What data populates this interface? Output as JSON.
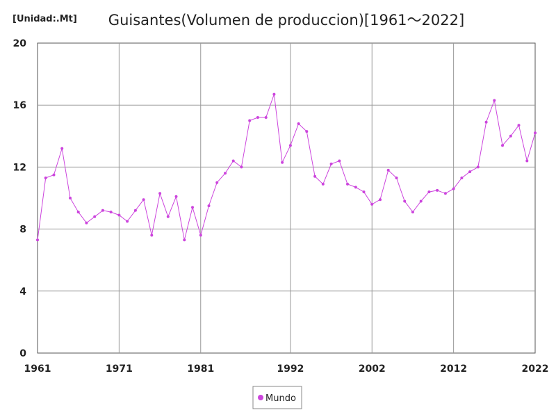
{
  "unit_label": "[Unidad:.Mt]",
  "chart_data": {
    "type": "line",
    "title": "Guisantes(Volumen de produccion)[1961～2022]",
    "xlabel": "",
    "ylabel": "",
    "x_ticks": [
      "1961",
      "1971",
      "1981",
      "1992",
      "2002",
      "2012",
      "2022"
    ],
    "y_ticks": [
      "0",
      "4",
      "8",
      "12",
      "16",
      "20"
    ],
    "ylim": [
      0,
      20
    ],
    "xlim": [
      1961,
      2022
    ],
    "grid": true,
    "legend_position": "bottom",
    "series_color": "#cc44dd",
    "series": [
      {
        "name": "Mundo",
        "x": [
          1961,
          1962,
          1963,
          1964,
          1965,
          1966,
          1967,
          1968,
          1969,
          1970,
          1971,
          1972,
          1973,
          1974,
          1975,
          1976,
          1977,
          1978,
          1979,
          1980,
          1981,
          1982,
          1983,
          1984,
          1985,
          1986,
          1987,
          1988,
          1989,
          1990,
          1991,
          1992,
          1993,
          1994,
          1995,
          1996,
          1997,
          1998,
          1999,
          2000,
          2001,
          2002,
          2003,
          2004,
          2005,
          2006,
          2007,
          2008,
          2009,
          2010,
          2011,
          2012,
          2013,
          2014,
          2015,
          2016,
          2017,
          2018,
          2019,
          2020,
          2021,
          2022
        ],
        "values": [
          7.3,
          11.3,
          11.5,
          13.2,
          10.0,
          9.1,
          8.4,
          8.8,
          9.2,
          9.1,
          8.9,
          8.5,
          9.2,
          9.9,
          7.6,
          10.3,
          8.8,
          10.1,
          7.3,
          9.4,
          7.6,
          9.5,
          11.0,
          11.6,
          12.4,
          12.0,
          15.0,
          15.2,
          15.2,
          16.7,
          12.3,
          13.4,
          14.8,
          14.3,
          11.4,
          10.9,
          12.2,
          12.4,
          10.9,
          10.7,
          10.4,
          9.6,
          9.9,
          11.8,
          11.3,
          9.8,
          9.1,
          9.8,
          10.4,
          10.5,
          10.3,
          10.6,
          11.3,
          11.7,
          12.0,
          14.9,
          16.3,
          13.4,
          14.0,
          14.7,
          12.4,
          14.2
        ]
      }
    ]
  }
}
